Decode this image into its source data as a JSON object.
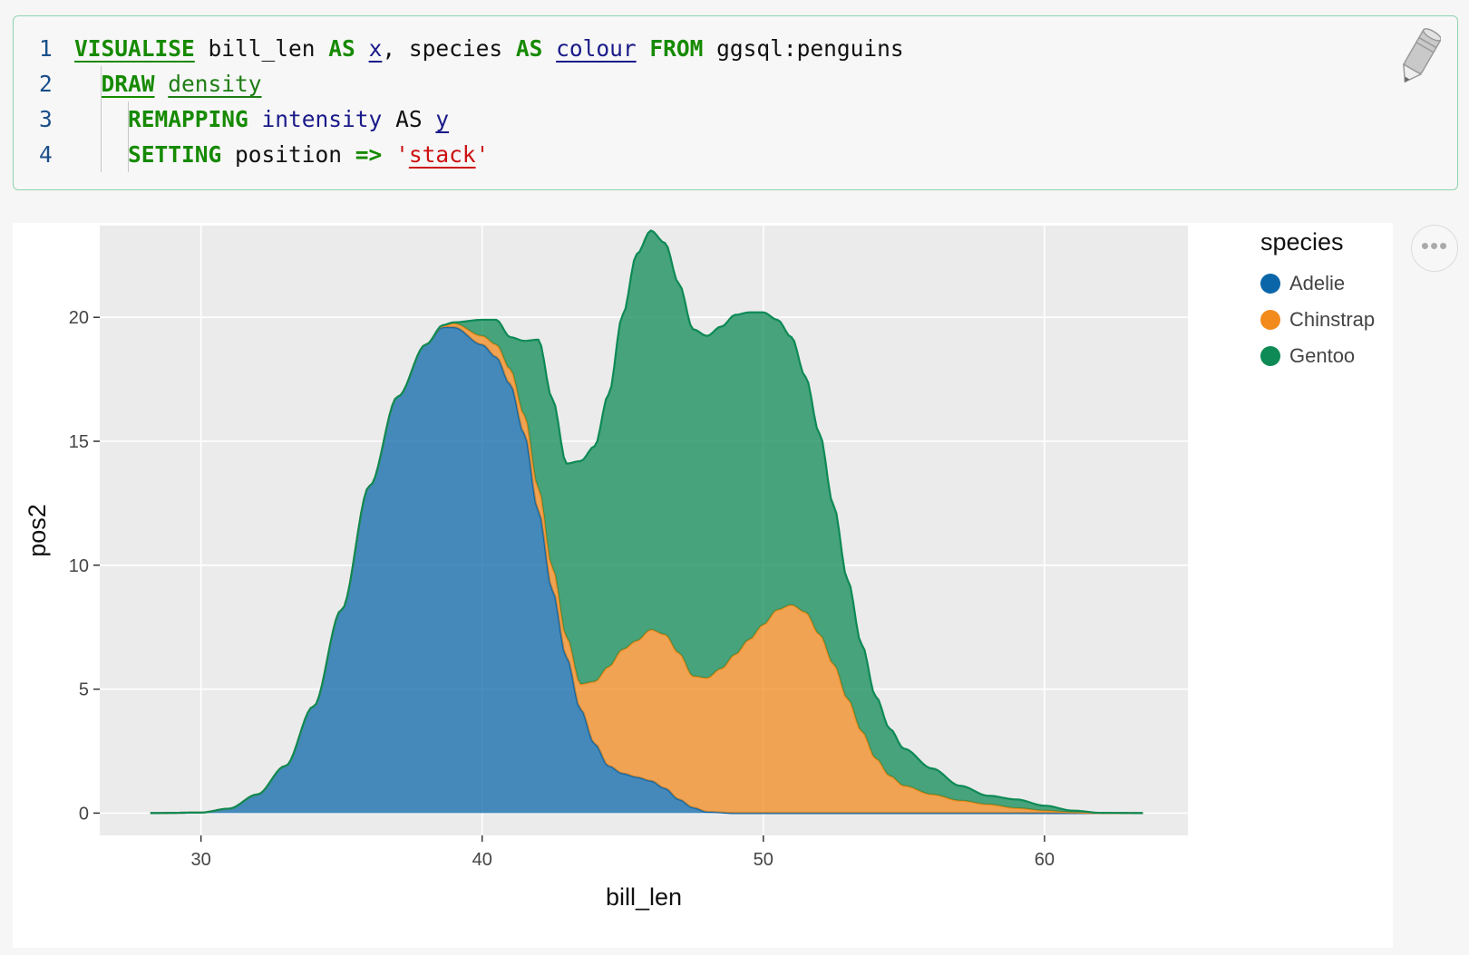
{
  "code": {
    "lines": [
      {
        "num": "1",
        "tokens": [
          {
            "t": "VISUALISE",
            "c": "kw"
          },
          {
            "t": " bill_len ",
            "c": ""
          },
          {
            "t": "AS",
            "c": "kw-plain"
          },
          {
            "t": " ",
            "c": ""
          },
          {
            "t": "x",
            "c": "idu"
          },
          {
            "t": ", species ",
            "c": ""
          },
          {
            "t": "AS",
            "c": "kw-plain"
          },
          {
            "t": " ",
            "c": ""
          },
          {
            "t": "colour",
            "c": "idu"
          },
          {
            "t": " ",
            "c": ""
          },
          {
            "t": "FROM",
            "c": "kw-plain"
          },
          {
            "t": " ggsql:penguins",
            "c": ""
          }
        ]
      },
      {
        "num": "2",
        "tokens": [
          {
            "t": "  ",
            "c": ""
          },
          {
            "t": "DRAW",
            "c": "kw"
          },
          {
            "t": " ",
            "c": ""
          },
          {
            "t": "density",
            "c": "fn"
          }
        ]
      },
      {
        "num": "3",
        "tokens": [
          {
            "t": "    ",
            "c": ""
          },
          {
            "t": "REMAPPING",
            "c": "kw-plain"
          },
          {
            "t": " ",
            "c": ""
          },
          {
            "t": "intensity",
            "c": "id"
          },
          {
            "t": " AS ",
            "c": ""
          },
          {
            "t": "y",
            "c": "idu"
          }
        ]
      },
      {
        "num": "4",
        "tokens": [
          {
            "t": "    ",
            "c": ""
          },
          {
            "t": "SETTING",
            "c": "kw-plain"
          },
          {
            "t": " position ",
            "c": ""
          },
          {
            "t": "=>",
            "c": "kw-plain"
          },
          {
            "t": " ",
            "c": ""
          },
          {
            "t": "'",
            "c": "str"
          },
          {
            "t": "stack",
            "c": "stru"
          },
          {
            "t": "'",
            "c": "str"
          }
        ]
      }
    ]
  },
  "chart_data": {
    "type": "area",
    "stacked": true,
    "xlabel": "bill_len",
    "ylabel": "pos2",
    "xlim": [
      26.4,
      65.1
    ],
    "ylim": [
      -0.9,
      23.7
    ],
    "xticks": [
      30,
      40,
      50,
      60
    ],
    "yticks": [
      0,
      5,
      10,
      15,
      20
    ],
    "grid": true,
    "legend": {
      "title": "species",
      "position": "right"
    },
    "series": [
      {
        "name": "Adelie",
        "color": "#0a66a8",
        "points": [
          [
            28.2,
            0
          ],
          [
            30,
            0.02
          ],
          [
            31,
            0.18
          ],
          [
            32,
            0.75
          ],
          [
            33,
            1.9
          ],
          [
            34,
            4.3
          ],
          [
            35,
            8.2
          ],
          [
            36,
            13.2
          ],
          [
            37,
            16.8
          ],
          [
            38,
            18.9
          ],
          [
            38.6,
            19.6
          ],
          [
            39,
            19.6
          ],
          [
            40,
            18.9
          ],
          [
            40.5,
            18.4
          ],
          [
            41,
            17.3
          ],
          [
            41.5,
            15.3
          ],
          [
            42,
            12.2
          ],
          [
            42.5,
            9.0
          ],
          [
            43,
            6.3
          ],
          [
            43.5,
            4.2
          ],
          [
            44,
            2.8
          ],
          [
            44.5,
            1.9
          ],
          [
            45,
            1.6
          ],
          [
            45.5,
            1.45
          ],
          [
            46,
            1.3
          ],
          [
            46.5,
            1.0
          ],
          [
            47,
            0.55
          ],
          [
            47.5,
            0.22
          ],
          [
            48,
            0.05
          ],
          [
            49,
            0.0
          ],
          [
            63.5,
            0
          ]
        ]
      },
      {
        "name": "Chinstrap",
        "color": "#f28a1c",
        "points": [
          [
            28.2,
            0
          ],
          [
            38,
            0
          ],
          [
            38.6,
            0.05
          ],
          [
            39,
            0.15
          ],
          [
            40,
            0.35
          ],
          [
            40.5,
            0.5
          ],
          [
            41,
            0.6
          ],
          [
            41.5,
            0.75
          ],
          [
            42,
            0.9
          ],
          [
            42.5,
            0.9
          ],
          [
            43,
            0.8
          ],
          [
            43.5,
            1.0
          ],
          [
            44,
            2.5
          ],
          [
            44.5,
            4.0
          ],
          [
            45,
            5.0
          ],
          [
            45.5,
            5.5
          ],
          [
            46,
            6.1
          ],
          [
            46.5,
            6.2
          ],
          [
            47,
            5.9
          ],
          [
            47.5,
            5.3
          ],
          [
            48,
            5.4
          ],
          [
            48.5,
            5.8
          ],
          [
            49,
            6.4
          ],
          [
            49.5,
            7.0
          ],
          [
            50,
            7.6
          ],
          [
            50.5,
            8.2
          ],
          [
            51,
            8.4
          ],
          [
            51.5,
            8.1
          ],
          [
            52,
            7.2
          ],
          [
            52.5,
            6.0
          ],
          [
            53,
            4.6
          ],
          [
            53.5,
            3.3
          ],
          [
            54,
            2.2
          ],
          [
            54.5,
            1.5
          ],
          [
            55,
            1.1
          ],
          [
            56,
            0.75
          ],
          [
            57,
            0.5
          ],
          [
            58,
            0.35
          ],
          [
            59,
            0.2
          ],
          [
            60,
            0.1
          ],
          [
            61,
            0.03
          ],
          [
            62,
            0
          ],
          [
            63.5,
            0
          ]
        ]
      },
      {
        "name": "Gentoo",
        "color": "#0d8a55",
        "points": [
          [
            28.2,
            0
          ],
          [
            38,
            0
          ],
          [
            39,
            0.05
          ],
          [
            40,
            0.65
          ],
          [
            40.5,
            1.0
          ],
          [
            41,
            1.3
          ],
          [
            41.5,
            3.0
          ],
          [
            42,
            6.0
          ],
          [
            42.5,
            6.8
          ],
          [
            43,
            7.0
          ],
          [
            43.5,
            9.0
          ],
          [
            44,
            9.5
          ],
          [
            44.5,
            11.0
          ],
          [
            45,
            13.5
          ],
          [
            45.5,
            15.6
          ],
          [
            46,
            16.1
          ],
          [
            46.5,
            15.8
          ],
          [
            47,
            14.9
          ],
          [
            47.5,
            14.0
          ],
          [
            48,
            13.8
          ],
          [
            48.5,
            13.8
          ],
          [
            49,
            13.7
          ],
          [
            49.5,
            13.2
          ],
          [
            50,
            12.6
          ],
          [
            50.5,
            11.7
          ],
          [
            51,
            10.8
          ],
          [
            51.5,
            9.5
          ],
          [
            52,
            8.1
          ],
          [
            52.5,
            6.4
          ],
          [
            53,
            4.8
          ],
          [
            53.5,
            3.5
          ],
          [
            54,
            2.5
          ],
          [
            54.5,
            1.9
          ],
          [
            55,
            1.5
          ],
          [
            56,
            1.05
          ],
          [
            57,
            0.6
          ],
          [
            58,
            0.35
          ],
          [
            59,
            0.35
          ],
          [
            60,
            0.2
          ],
          [
            61,
            0.07
          ],
          [
            62,
            0.01
          ],
          [
            63.5,
            0
          ]
        ]
      }
    ]
  }
}
